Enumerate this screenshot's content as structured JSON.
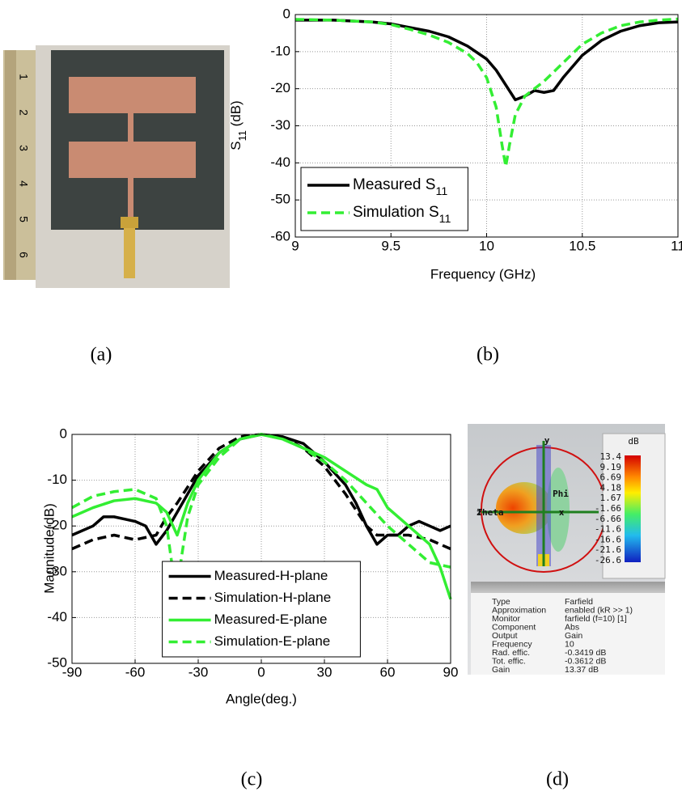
{
  "chart_data": [
    {
      "type": "line",
      "xlabel": "Frequency (GHz)",
      "ylabel": "S11 (dB)",
      "xlim": [
        9,
        11
      ],
      "ylim": [
        -60,
        0
      ],
      "xticks": [
        9,
        9.5,
        10,
        10.5,
        11
      ],
      "yticks": [
        0,
        -10,
        -20,
        -30,
        -40,
        -50,
        -60
      ],
      "grid": true,
      "legend": "lower left",
      "series": [
        {
          "name": "Measured S11",
          "color": "#000000",
          "dashed": false,
          "x": [
            9,
            9.2,
            9.4,
            9.5,
            9.6,
            9.7,
            9.8,
            9.9,
            10.0,
            10.05,
            10.1,
            10.15,
            10.2,
            10.25,
            10.3,
            10.35,
            10.4,
            10.5,
            10.6,
            10.7,
            10.8,
            10.9,
            11
          ],
          "values": [
            -1.5,
            -1.5,
            -2,
            -2.5,
            -3.5,
            -4.5,
            -6,
            -8.5,
            -12,
            -15,
            -19,
            -23,
            -22,
            -20.5,
            -21,
            -20.5,
            -17,
            -11,
            -7,
            -4.5,
            -3,
            -2.2,
            -2
          ]
        },
        {
          "name": "Simulation S11",
          "color": "#33ee33",
          "dashed": true,
          "x": [
            9,
            9.2,
            9.4,
            9.5,
            9.6,
            9.7,
            9.8,
            9.9,
            9.95,
            10.0,
            10.05,
            10.08,
            10.1,
            10.12,
            10.15,
            10.2,
            10.3,
            10.4,
            10.5,
            10.6,
            10.7,
            10.8,
            10.9,
            11
          ],
          "values": [
            -1.3,
            -1.5,
            -2,
            -2.7,
            -4,
            -5.5,
            -7.5,
            -10.5,
            -13,
            -17,
            -25,
            -35,
            -41,
            -35,
            -27,
            -22,
            -18,
            -13,
            -8,
            -5,
            -3,
            -2,
            -1.5,
            -1.2
          ]
        }
      ]
    },
    {
      "type": "line",
      "xlabel": "Angle(deg.)",
      "ylabel": "Magnitude(dB)",
      "xlim": [
        -90,
        90
      ],
      "ylim": [
        -50,
        0
      ],
      "xticks": [
        -90,
        -60,
        -30,
        0,
        30,
        60,
        90
      ],
      "yticks": [
        0,
        -10,
        -20,
        -30,
        -40,
        -50
      ],
      "grid": true,
      "legend": "lower center",
      "series": [
        {
          "name": "Measured-H-plane",
          "color": "#000000",
          "dashed": false,
          "x": [
            -90,
            -80,
            -75,
            -70,
            -65,
            -60,
            -55,
            -50,
            -45,
            -40,
            -30,
            -20,
            -10,
            0,
            10,
            20,
            30,
            40,
            45,
            50,
            55,
            60,
            65,
            70,
            75,
            80,
            85,
            90
          ],
          "values": [
            -22,
            -20,
            -18,
            -18,
            -18.5,
            -19,
            -20,
            -24,
            -21,
            -17,
            -9,
            -4,
            -1,
            0,
            -0.5,
            -2,
            -6,
            -11,
            -15,
            -20,
            -24,
            -22,
            -22,
            -20,
            -19,
            -20,
            -21,
            -20
          ]
        },
        {
          "name": "Simulation-H-plane",
          "color": "#000000",
          "dashed": true,
          "x": [
            -90,
            -80,
            -70,
            -60,
            -50,
            -45,
            -40,
            -30,
            -20,
            -10,
            0,
            10,
            20,
            30,
            40,
            50,
            55,
            60,
            70,
            80,
            90
          ],
          "values": [
            -25,
            -23,
            -22,
            -23,
            -22,
            -18,
            -15,
            -8,
            -3,
            -0.5,
            0,
            -0.5,
            -3,
            -7,
            -13,
            -20,
            -22,
            -22,
            -22,
            -23,
            -25
          ]
        },
        {
          "name": "Measured-E-plane",
          "color": "#33ee33",
          "dashed": false,
          "x": [
            -90,
            -80,
            -70,
            -60,
            -50,
            -45,
            -40,
            -35,
            -30,
            -20,
            -10,
            0,
            10,
            20,
            30,
            40,
            50,
            55,
            60,
            70,
            80,
            85,
            90
          ],
          "values": [
            -18,
            -16,
            -14.5,
            -14,
            -15,
            -17,
            -22,
            -15,
            -10,
            -4,
            -1,
            0,
            -1,
            -3,
            -5,
            -8,
            -11,
            -12,
            -16,
            -20,
            -24,
            -29,
            -36
          ]
        },
        {
          "name": "Simulation-E-plane",
          "color": "#33ee33",
          "dashed": true,
          "x": [
            -90,
            -80,
            -70,
            -60,
            -50,
            -45,
            -42,
            -40,
            -38,
            -35,
            -30,
            -20,
            -10,
            0,
            10,
            20,
            30,
            40,
            50,
            60,
            70,
            80,
            90
          ],
          "values": [
            -16,
            -13.5,
            -12.5,
            -12,
            -14,
            -20,
            -30,
            -34,
            -27,
            -18,
            -11,
            -5,
            -1,
            0,
            -1,
            -3,
            -6,
            -10,
            -15,
            -20,
            -24,
            -28,
            -29
          ]
        }
      ]
    }
  ],
  "captions": [
    "(a)",
    "(b)",
    "(c)",
    "(d)"
  ],
  "photo": {
    "ruler_labels": [
      "1",
      "2",
      "3",
      "4",
      "5",
      "6"
    ]
  },
  "farfield": {
    "unit": "dB",
    "colorbar_labels": [
      "13.4",
      "9.19",
      "6.69",
      "4.18",
      "1.67",
      "-1.66",
      "-6.66",
      "-11.6",
      "-16.6",
      "-21.6",
      "-26.6"
    ],
    "axis_labels": [
      "y",
      "z",
      "x",
      "Theta",
      "Phi"
    ],
    "info": [
      [
        "Type",
        "Farfield"
      ],
      [
        "Approximation",
        "enabled (kR >> 1)"
      ],
      [
        "Monitor",
        "farfield (f=10) [1]"
      ],
      [
        "Component",
        "Abs"
      ],
      [
        "Output",
        "Gain"
      ],
      [
        "Frequency",
        "10"
      ],
      [
        "Rad. effic.",
        "-0.3419 dB"
      ],
      [
        "Tot. effic.",
        "-0.3612 dB"
      ],
      [
        "Gain",
        "13.37 dB"
      ]
    ]
  }
}
